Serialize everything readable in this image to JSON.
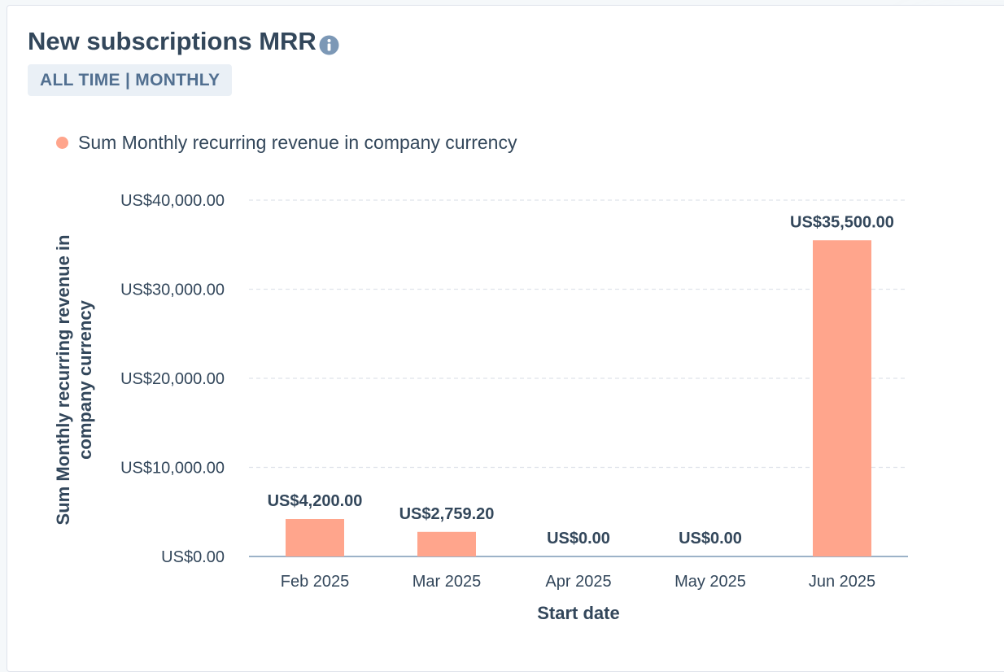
{
  "widget": {
    "title": "New subscriptions MRR",
    "filter_label": "ALL TIME | MONTHLY",
    "info_icon": "info-icon"
  },
  "colors": {
    "bar": "#ffa58c",
    "text": "#33475b",
    "grid": "#dfe3eb",
    "axis": "#7c98b6"
  },
  "chart_data": {
    "type": "bar",
    "categories": [
      "Feb 2025",
      "Mar 2025",
      "Apr 2025",
      "May 2025",
      "Jun 2025"
    ],
    "series": [
      {
        "name": "Sum Monthly recurring revenue in company currency",
        "values": [
          4200,
          2759.2,
          0,
          0,
          35500
        ],
        "data_labels": [
          "US$4,200.00",
          "US$2,759.20",
          "US$0.00",
          "US$0.00",
          "US$35,500.00"
        ]
      }
    ],
    "xlabel": "Start date",
    "ylabel_lines": [
      "Sum Monthly recurring revenue in",
      "company currency"
    ],
    "ylim": [
      0,
      40000
    ],
    "yticks": [
      0,
      10000,
      20000,
      30000,
      40000
    ],
    "ytick_labels": [
      "US$0.00",
      "US$10,000.00",
      "US$20,000.00",
      "US$30,000.00",
      "US$40,000.00"
    ],
    "grid": true,
    "legend_position": "top-left"
  }
}
